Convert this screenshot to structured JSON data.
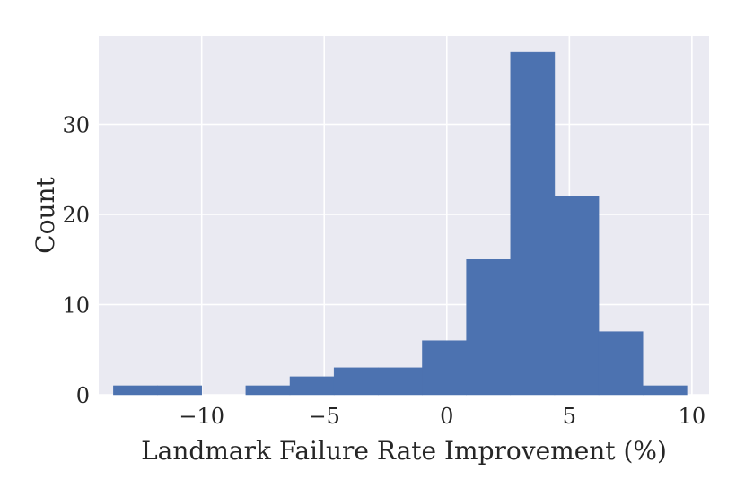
{
  "chart_data": {
    "type": "bar",
    "subtype": "histogram",
    "xlabel": "Landmark Failure Rate Improvement (%)",
    "ylabel": "Count",
    "xlim": [
      -14.2,
      10.7
    ],
    "ylim": [
      0,
      39.8
    ],
    "x_ticks": [
      {
        "value": -10,
        "label": "−10"
      },
      {
        "value": -5,
        "label": "−5"
      },
      {
        "value": 0,
        "label": "0"
      },
      {
        "value": 5,
        "label": "5"
      },
      {
        "value": 10,
        "label": "10"
      }
    ],
    "y_ticks": [
      {
        "value": 0,
        "label": "0"
      },
      {
        "value": 10,
        "label": "10"
      },
      {
        "value": 20,
        "label": "20"
      },
      {
        "value": 30,
        "label": "30"
      }
    ],
    "bin_edges": [
      -13.6,
      -11.8,
      -10.0,
      -8.2,
      -6.4,
      -4.6,
      -2.8,
      -1.0,
      0.8,
      2.6,
      4.4,
      6.2,
      8.0,
      9.8
    ],
    "bins": [
      {
        "x0": -13.6,
        "x1": -11.8,
        "count": 1
      },
      {
        "x0": -11.8,
        "x1": -10.0,
        "count": 1
      },
      {
        "x0": -10.0,
        "x1": -8.2,
        "count": 0
      },
      {
        "x0": -8.2,
        "x1": -6.4,
        "count": 1
      },
      {
        "x0": -6.4,
        "x1": -4.6,
        "count": 2
      },
      {
        "x0": -4.6,
        "x1": -2.8,
        "count": 3
      },
      {
        "x0": -2.8,
        "x1": -1.0,
        "count": 3
      },
      {
        "x0": -1.0,
        "x1": 0.8,
        "count": 6
      },
      {
        "x0": 0.8,
        "x1": 2.6,
        "count": 15
      },
      {
        "x0": 2.6,
        "x1": 4.4,
        "count": 38
      },
      {
        "x0": 4.4,
        "x1": 6.2,
        "count": 22
      },
      {
        "x0": 6.2,
        "x1": 8.0,
        "count": 7
      },
      {
        "x0": 8.0,
        "x1": 9.8,
        "count": 1
      }
    ],
    "grid": true,
    "colors": {
      "bar": "#4c72b0",
      "plot_background": "#eaeaf2",
      "grid": "#ffffff",
      "text": "#262626"
    }
  }
}
